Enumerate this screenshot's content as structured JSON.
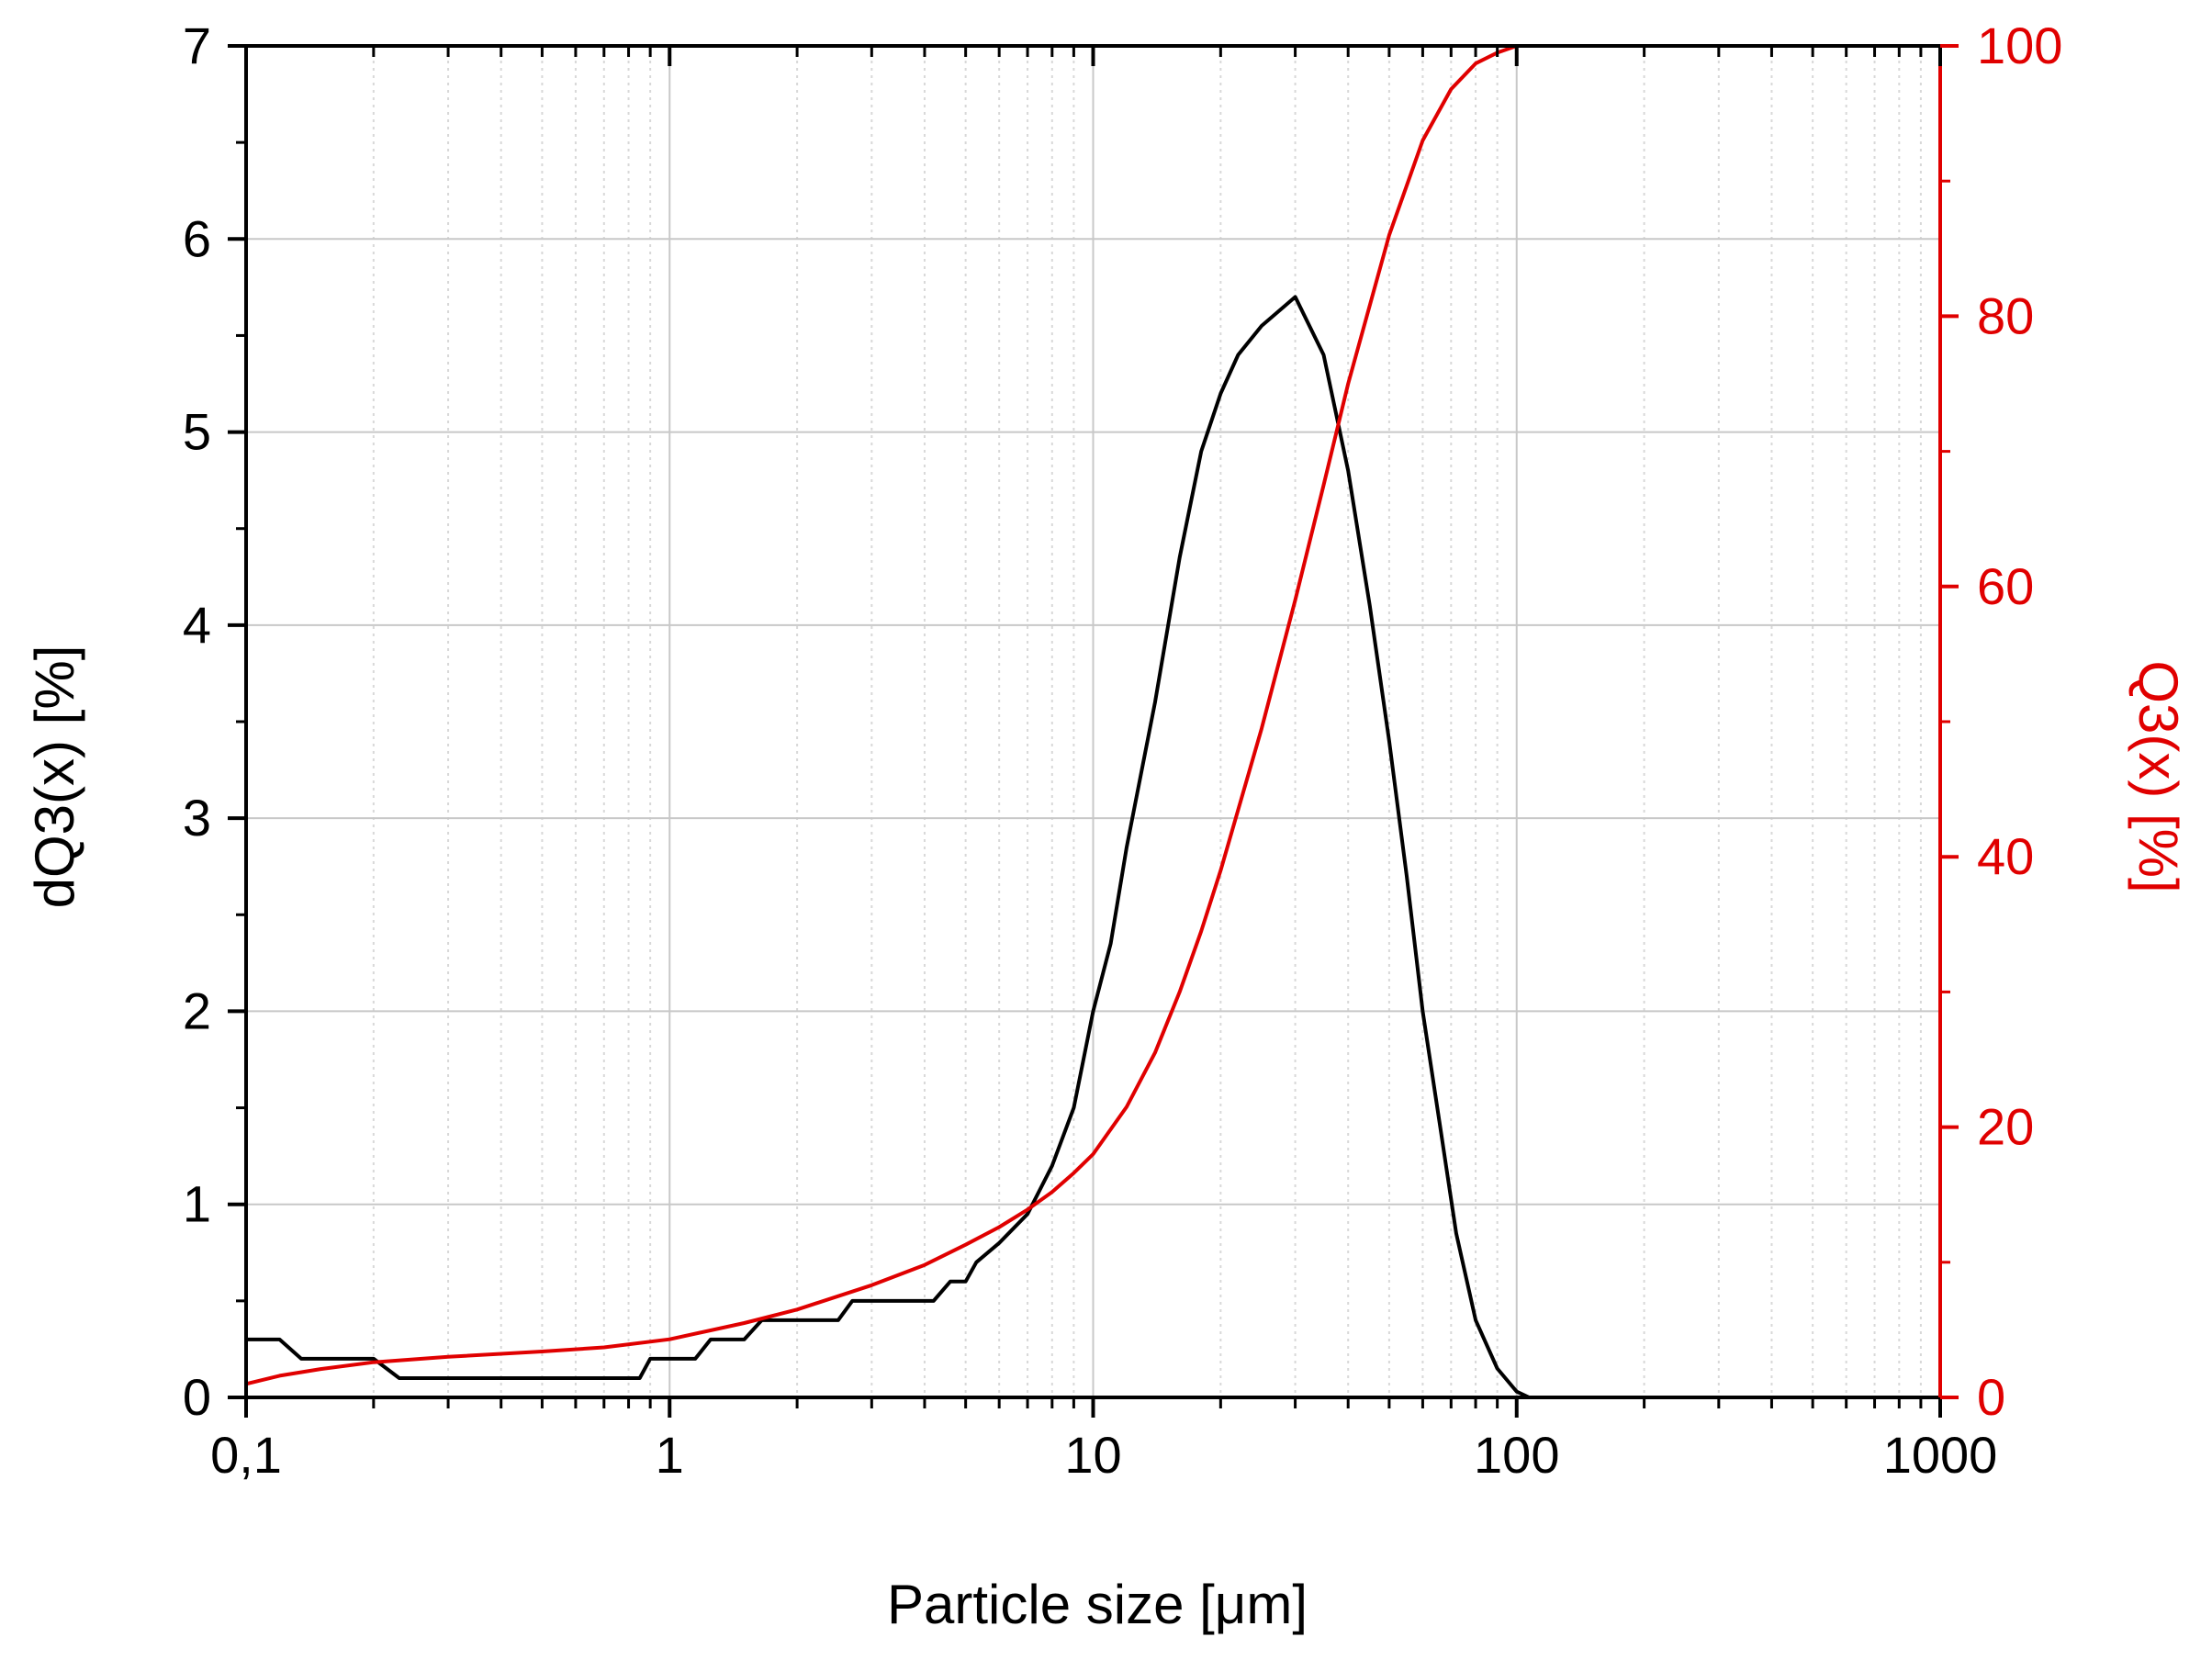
{
  "chart_data": {
    "type": "line",
    "title": "",
    "xlabel": "Particle size [μm]",
    "ylabel_left": "dQ3(x) [%]",
    "ylabel_right": "Q3(x) [%]",
    "x_scale": "log",
    "xlim": [
      0.1,
      1000
    ],
    "ylim_left": [
      0,
      7
    ],
    "ylim_right": [
      0,
      100
    ],
    "x_ticks": [
      0.1,
      1,
      10,
      100,
      1000
    ],
    "x_tick_labels": [
      "0,1",
      "1",
      "10",
      "100",
      "1000"
    ],
    "y_left_ticks": [
      0,
      1,
      2,
      3,
      4,
      5,
      6,
      7
    ],
    "y_left_tick_labels": [
      "0",
      "1",
      "2",
      "3",
      "4",
      "5",
      "6",
      "7"
    ],
    "y_right_ticks": [
      0,
      20,
      40,
      60,
      80,
      100
    ],
    "y_right_tick_labels": [
      "0",
      "20",
      "40",
      "60",
      "80",
      "100"
    ],
    "grid": true,
    "legend": "none",
    "colors": {
      "left_axis": "#000000",
      "right_axis": "#e00000",
      "grid_major": "#c8c8c8",
      "grid_minor": "#d8d8d8"
    },
    "series": [
      {
        "axis": "left",
        "color": "#000000",
        "x": [
          0.1,
          0.12,
          0.135,
          0.2,
          0.23,
          0.3,
          0.5,
          0.85,
          0.9,
          1.0,
          1.15,
          1.25,
          1.5,
          1.65,
          2.0,
          2.5,
          2.7,
          3.0,
          3.5,
          4.2,
          4.6,
          5.0,
          5.3,
          6.0,
          7.0,
          8.0,
          9.0,
          10.0,
          11.0,
          12.0,
          14.0,
          16.0,
          18.0,
          20.0,
          22.0,
          25.0,
          30.0,
          35.0,
          40.0,
          45.0,
          50.0,
          55.0,
          60.0,
          66.0,
          72.0,
          80.0,
          90.0,
          100.0,
          107.0
        ],
        "y": [
          0.3,
          0.3,
          0.2,
          0.2,
          0.1,
          0.1,
          0.1,
          0.1,
          0.2,
          0.2,
          0.2,
          0.3,
          0.3,
          0.4,
          0.4,
          0.4,
          0.5,
          0.5,
          0.5,
          0.5,
          0.6,
          0.6,
          0.7,
          0.8,
          0.95,
          1.2,
          1.5,
          2.0,
          2.35,
          2.85,
          3.6,
          4.35,
          4.9,
          5.2,
          5.4,
          5.55,
          5.7,
          5.4,
          4.8,
          4.1,
          3.4,
          2.7,
          2.0,
          1.4,
          0.85,
          0.4,
          0.15,
          0.03,
          0.0
        ]
      },
      {
        "axis": "right",
        "color": "#e00000",
        "x": [
          0.1,
          0.12,
          0.15,
          0.2,
          0.3,
          0.5,
          0.7,
          1.0,
          1.5,
          2.0,
          3.0,
          4.0,
          5.0,
          6.0,
          7.0,
          8.0,
          9.0,
          10.0,
          12.0,
          14.0,
          16.0,
          18.0,
          20.0,
          25.0,
          30.0,
          35.0,
          40.0,
          50.0,
          60.0,
          70.0,
          80.0,
          90.0,
          100.0,
          150.0,
          300.0,
          1000.0
        ],
        "y": [
          1.0,
          1.6,
          2.1,
          2.6,
          3.0,
          3.4,
          3.7,
          4.3,
          5.5,
          6.5,
          8.3,
          9.8,
          11.3,
          12.6,
          13.9,
          15.2,
          16.6,
          18.0,
          21.5,
          25.5,
          30.0,
          34.5,
          39.0,
          49.5,
          59.0,
          67.5,
          75.0,
          86.0,
          93.0,
          96.8,
          98.7,
          99.5,
          100.0,
          100.0,
          100.0,
          100.0
        ]
      }
    ]
  }
}
